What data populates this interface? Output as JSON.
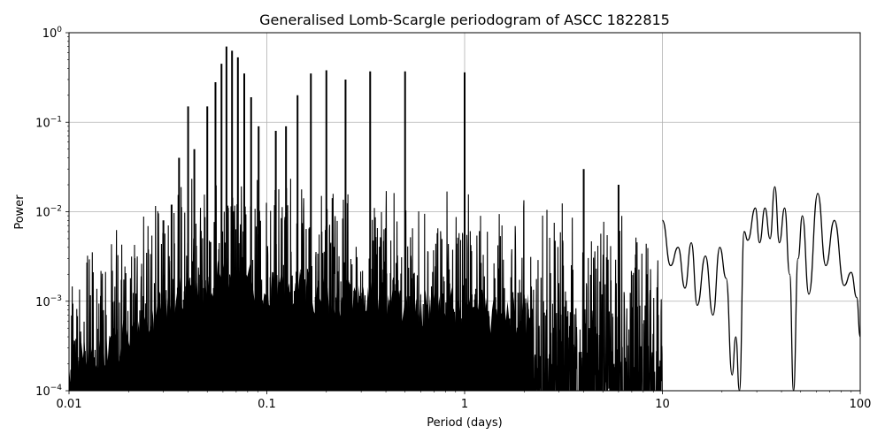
{
  "chart_data": {
    "type": "line",
    "title": "Generalised Lomb-Scargle periodogram of ASCC 1822815",
    "xlabel": "Period (days)",
    "ylabel": "Power",
    "xscale": "log",
    "yscale": "log",
    "xlim": [
      0.01,
      100
    ],
    "ylim": [
      0.0001,
      1
    ],
    "grid": true,
    "legend": null,
    "x_ticks": [
      {
        "value": 0.01,
        "label": "0.01"
      },
      {
        "value": 0.1,
        "label": "0.1"
      },
      {
        "value": 1,
        "label": "1"
      },
      {
        "value": 10,
        "label": "10"
      },
      {
        "value": 100,
        "label": "100"
      }
    ],
    "y_ticks": [
      {
        "value": 0.0001,
        "base": "10",
        "exp": "−4"
      },
      {
        "value": 0.001,
        "base": "10",
        "exp": "−3"
      },
      {
        "value": 0.01,
        "base": "10",
        "exp": "−2"
      },
      {
        "value": 0.1,
        "base": "10",
        "exp": "−1"
      },
      {
        "value": 1,
        "base": "10",
        "exp": "0"
      }
    ],
    "line_color": "#000000",
    "grid_color": "#b0b0b0",
    "prominent_peaks": [
      {
        "period": 0.03,
        "power": 0.008
      },
      {
        "period": 0.033,
        "power": 0.012
      },
      {
        "period": 0.036,
        "power": 0.04
      },
      {
        "period": 0.04,
        "power": 0.15
      },
      {
        "period": 0.043,
        "power": 0.05
      },
      {
        "period": 0.05,
        "power": 0.15
      },
      {
        "period": 0.055,
        "power": 0.28
      },
      {
        "period": 0.059,
        "power": 0.45
      },
      {
        "period": 0.0625,
        "power": 0.7
      },
      {
        "period": 0.0667,
        "power": 0.63
      },
      {
        "period": 0.0714,
        "power": 0.53
      },
      {
        "period": 0.0769,
        "power": 0.35
      },
      {
        "period": 0.0833,
        "power": 0.19
      },
      {
        "period": 0.0909,
        "power": 0.09
      },
      {
        "period": 0.111,
        "power": 0.08
      },
      {
        "period": 0.125,
        "power": 0.09
      },
      {
        "period": 0.143,
        "power": 0.2
      },
      {
        "period": 0.167,
        "power": 0.35
      },
      {
        "period": 0.2,
        "power": 0.38
      },
      {
        "period": 0.25,
        "power": 0.3
      },
      {
        "period": 0.333,
        "power": 0.37
      },
      {
        "period": 0.5,
        "power": 0.37
      },
      {
        "period": 1.0,
        "power": 0.36
      },
      {
        "period": 4.0,
        "power": 0.03
      },
      {
        "period": 6.0,
        "power": 0.02
      },
      {
        "period": 25.9,
        "power": 0.006
      },
      {
        "period": 29.5,
        "power": 0.011
      },
      {
        "period": 33.0,
        "power": 0.011
      },
      {
        "period": 37.0,
        "power": 0.019
      },
      {
        "period": 41.5,
        "power": 0.011
      },
      {
        "period": 51.0,
        "power": 0.009
      },
      {
        "period": 61.0,
        "power": 0.016
      },
      {
        "period": 74.0,
        "power": 0.008
      },
      {
        "period": 90.0,
        "power": 0.0021
      },
      {
        "period": 100.0,
        "power": 0.0004
      }
    ],
    "long_period_curve": [
      [
        10.0,
        0.008
      ],
      [
        11.0,
        0.0025
      ],
      [
        12.0,
        0.004
      ],
      [
        13.0,
        0.0014
      ],
      [
        14.0,
        0.0045
      ],
      [
        15.0,
        0.0009
      ],
      [
        16.5,
        0.0032
      ],
      [
        18.0,
        0.0007
      ],
      [
        19.5,
        0.004
      ],
      [
        21.0,
        0.0018
      ],
      [
        22.5,
        0.00015
      ],
      [
        23.5,
        0.0004
      ],
      [
        24.5,
        0.0001
      ],
      [
        25.9,
        0.006
      ],
      [
        27.0,
        0.0048
      ],
      [
        29.5,
        0.011
      ],
      [
        31.0,
        0.0045
      ],
      [
        33.0,
        0.011
      ],
      [
        35.0,
        0.005
      ],
      [
        37.0,
        0.019
      ],
      [
        39.0,
        0.0045
      ],
      [
        41.5,
        0.011
      ],
      [
        44.0,
        0.002
      ],
      [
        46.0,
        0.0001
      ],
      [
        48.5,
        0.003
      ],
      [
        51.0,
        0.009
      ],
      [
        55.0,
        0.0012
      ],
      [
        61.0,
        0.016
      ],
      [
        67.0,
        0.0025
      ],
      [
        74.0,
        0.008
      ],
      [
        83.0,
        0.0015
      ],
      [
        90.0,
        0.0021
      ],
      [
        96.0,
        0.0011
      ],
      [
        100.0,
        0.0004
      ]
    ]
  }
}
